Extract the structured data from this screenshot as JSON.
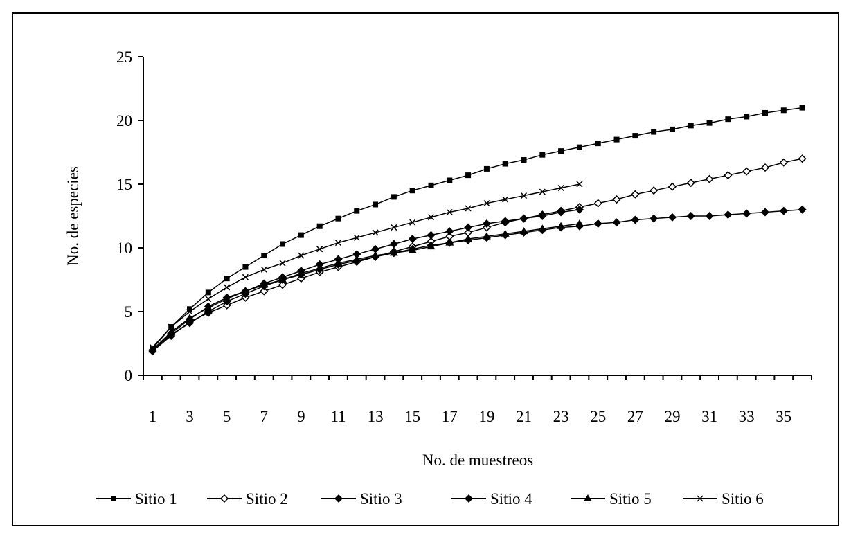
{
  "chart_data": {
    "type": "line",
    "title": "",
    "xlabel": "No. de muestreos",
    "ylabel": "No. de especies",
    "ylim": [
      0,
      25
    ],
    "yticks": [
      0,
      5,
      10,
      15,
      20,
      25
    ],
    "xlim": [
      1,
      36
    ],
    "xtick_labels": [
      "1",
      "3",
      "5",
      "7",
      "9",
      "11",
      "13",
      "15",
      "17",
      "19",
      "21",
      "23",
      "25",
      "27",
      "29",
      "31",
      "33",
      "35"
    ],
    "grid": false,
    "legend_position": "bottom",
    "series": [
      {
        "name": "Sitio 1",
        "marker": "square-filled",
        "x": [
          1,
          2,
          3,
          4,
          5,
          6,
          7,
          8,
          9,
          10,
          11,
          12,
          13,
          14,
          15,
          16,
          17,
          18,
          19,
          20,
          21,
          22,
          23,
          24,
          25,
          26,
          27,
          28,
          29,
          30,
          31,
          32,
          33,
          34,
          35,
          36
        ],
        "values": [
          2.1,
          3.8,
          5.2,
          6.5,
          7.6,
          8.5,
          9.4,
          10.3,
          11.0,
          11.7,
          12.3,
          12.9,
          13.4,
          14.0,
          14.5,
          14.9,
          15.3,
          15.7,
          16.2,
          16.6,
          16.9,
          17.3,
          17.6,
          17.9,
          18.2,
          18.5,
          18.8,
          19.1,
          19.3,
          19.6,
          19.8,
          20.1,
          20.3,
          20.6,
          20.8,
          21.0
        ]
      },
      {
        "name": "Sitio 2",
        "marker": "diamond-open",
        "x": [
          1,
          2,
          3,
          4,
          5,
          6,
          7,
          8,
          9,
          10,
          11,
          12,
          13,
          14,
          15,
          16,
          17,
          18,
          19,
          20,
          21,
          22,
          23,
          24,
          25,
          26,
          27,
          28,
          29,
          30,
          31,
          32,
          33,
          34,
          35,
          36
        ],
        "values": [
          1.9,
          3.1,
          4.2,
          4.9,
          5.5,
          6.1,
          6.6,
          7.1,
          7.6,
          8.1,
          8.5,
          8.9,
          9.3,
          9.7,
          10.1,
          10.5,
          10.9,
          11.2,
          11.6,
          12.0,
          12.3,
          12.6,
          12.9,
          13.2,
          13.5,
          13.8,
          14.2,
          14.5,
          14.8,
          15.1,
          15.4,
          15.7,
          16.0,
          16.3,
          16.7,
          17.0
        ]
      },
      {
        "name": "Sitio 3",
        "marker": "diamond-filled",
        "x": [
          1,
          2,
          3,
          4,
          5,
          6,
          7,
          8,
          9,
          10,
          11,
          12,
          13,
          14,
          15,
          16,
          17,
          18,
          19,
          20,
          21,
          22,
          23,
          24,
          25,
          26,
          27,
          28,
          29,
          30,
          31,
          32,
          33,
          34,
          35,
          36
        ],
        "values": [
          1.9,
          3.2,
          4.1,
          5.0,
          5.8,
          6.4,
          7.0,
          7.5,
          7.9,
          8.3,
          8.7,
          9.0,
          9.3,
          9.6,
          9.9,
          10.2,
          10.4,
          10.6,
          10.8,
          11.0,
          11.2,
          11.4,
          11.6,
          11.7,
          11.9,
          12.0,
          12.2,
          12.3,
          12.4,
          12.5,
          12.5,
          12.6,
          12.7,
          12.8,
          12.9,
          13.0
        ]
      },
      {
        "name": "Sitio 4",
        "marker": "diamond-filled",
        "x": [
          1,
          2,
          3,
          4,
          5,
          6,
          7,
          8,
          9,
          10,
          11,
          12,
          13,
          14,
          15,
          16,
          17,
          18,
          19,
          20,
          21,
          22,
          23,
          24
        ],
        "values": [
          2.0,
          3.3,
          4.4,
          5.4,
          6.1,
          6.6,
          7.2,
          7.7,
          8.2,
          8.7,
          9.1,
          9.5,
          9.9,
          10.3,
          10.7,
          11.0,
          11.3,
          11.6,
          11.9,
          12.1,
          12.3,
          12.5,
          12.8,
          13.0
        ]
      },
      {
        "name": "Sitio 5",
        "marker": "triangle-filled",
        "x": [
          1,
          2,
          3,
          4,
          5,
          6,
          7,
          8,
          9,
          10,
          11,
          12,
          13,
          14,
          15,
          16,
          17,
          18,
          19,
          20,
          21,
          22,
          23,
          24
        ],
        "values": [
          2.0,
          3.4,
          4.5,
          5.3,
          6.0,
          6.6,
          7.1,
          7.5,
          8.0,
          8.4,
          8.8,
          9.1,
          9.4,
          9.6,
          9.8,
          10.1,
          10.4,
          10.7,
          10.9,
          11.1,
          11.3,
          11.5,
          11.7,
          11.9
        ]
      },
      {
        "name": "Sitio 6",
        "marker": "x",
        "x": [
          1,
          2,
          3,
          4,
          5,
          6,
          7,
          8,
          9,
          10,
          11,
          12,
          13,
          14,
          15,
          16,
          17,
          18,
          19,
          20,
          21,
          22,
          23,
          24
        ],
        "values": [
          2.2,
          3.8,
          5.0,
          6.0,
          6.9,
          7.7,
          8.3,
          8.8,
          9.4,
          9.9,
          10.4,
          10.8,
          11.2,
          11.6,
          12.0,
          12.4,
          12.8,
          13.1,
          13.5,
          13.8,
          14.1,
          14.4,
          14.7,
          15.0
        ]
      }
    ]
  }
}
